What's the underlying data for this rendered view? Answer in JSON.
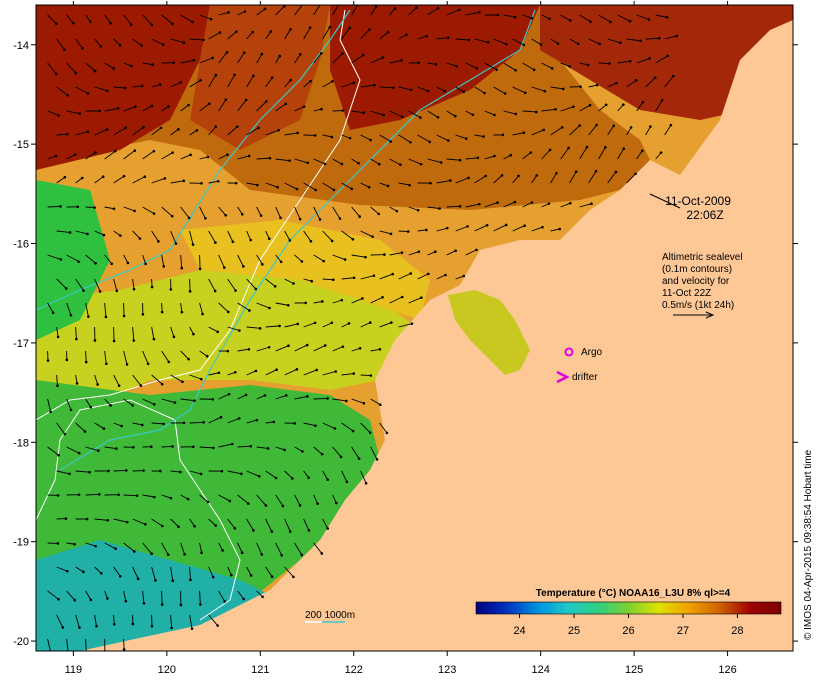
{
  "map": {
    "lon_range": [
      118.6,
      126.7
    ],
    "lat_range": [
      -20.1,
      -13.6
    ],
    "x_ticks": [
      {
        "value": 119,
        "label": "119"
      },
      {
        "value": 120,
        "label": "120"
      },
      {
        "value": 121,
        "label": "121"
      },
      {
        "value": 122,
        "label": "122"
      },
      {
        "value": 123,
        "label": "123"
      },
      {
        "value": 124,
        "label": "124"
      },
      {
        "value": 125,
        "label": "125"
      },
      {
        "value": 126,
        "label": "126"
      }
    ],
    "y_ticks": [
      {
        "value": -14,
        "label": "-14"
      },
      {
        "value": -15,
        "label": "-15"
      },
      {
        "value": -16,
        "label": "-16"
      },
      {
        "value": -17,
        "label": "-17"
      },
      {
        "value": -18,
        "label": "-18"
      },
      {
        "value": -19,
        "label": "-19"
      },
      {
        "value": -20,
        "label": "-20"
      }
    ]
  },
  "annotations": {
    "date": "11-Oct-2009",
    "time": "22:06Z",
    "sealevel_lines": [
      "Altimetric sealevel",
      "(0.1m contours)",
      "and velocity for",
      "11-Oct 22Z",
      "0.5m/s (1kt 24h)"
    ]
  },
  "legend": {
    "argo_label": "Argo",
    "drifter_label": "drifter",
    "bathy_label": "200  1000m"
  },
  "colorbar": {
    "title": "Temperature (°C) NOAA16_L3U 8% ql>=4",
    "range": [
      23.2,
      28.8
    ],
    "ticks": [
      {
        "value": 24,
        "label": "24"
      },
      {
        "value": 25,
        "label": "25"
      },
      {
        "value": 26,
        "label": "26"
      },
      {
        "value": 27,
        "label": "27"
      },
      {
        "value": 28,
        "label": "28"
      }
    ],
    "colors": [
      "#00007f",
      "#0030c0",
      "#0090e0",
      "#20c8c8",
      "#30d080",
      "#7cd030",
      "#e0e000",
      "#f0a000",
      "#d06000",
      "#a00000",
      "#7a0000"
    ]
  },
  "colors": {
    "land": "#fdc896",
    "bathy_200": "#ffffff",
    "bathy_1000": "#3cc8c8",
    "argo": "#e000e0",
    "drifter": "#e000e0"
  },
  "copyright": "© IMOS 04-Apr-2015 09:38:54 Hobart time"
}
